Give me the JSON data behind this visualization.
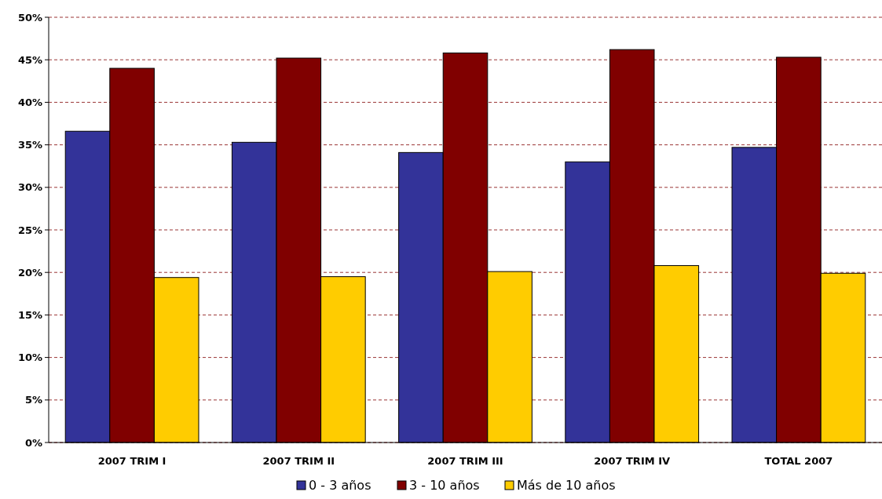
{
  "chart_data": {
    "type": "bar",
    "categories": [
      "2007 TRIM I",
      "2007 TRIM II",
      "2007 TRIM III",
      "2007 TRIM IV",
      "TOTAL 2007"
    ],
    "series": [
      {
        "name": "0 - 3 años",
        "color": "#333399",
        "values": [
          36.6,
          35.3,
          34.1,
          33.0,
          34.7
        ]
      },
      {
        "name": "3 - 10 años",
        "color": "#800000",
        "values": [
          44.0,
          45.2,
          45.8,
          46.2,
          45.3
        ]
      },
      {
        "name": "Más de 10 años",
        "color": "#ffcc00",
        "values": [
          19.4,
          19.5,
          20.1,
          20.8,
          19.9
        ]
      }
    ],
    "ylim": [
      0,
      50
    ],
    "yticks": [
      {
        "value": 0,
        "label": "0%"
      },
      {
        "value": 5,
        "label": "5%"
      },
      {
        "value": 10,
        "label": "10%"
      },
      {
        "value": 15,
        "label": "15%"
      },
      {
        "value": 20,
        "label": "20%"
      },
      {
        "value": 25,
        "label": "25%"
      },
      {
        "value": 30,
        "label": "30%"
      },
      {
        "value": 35,
        "label": "35%"
      },
      {
        "value": 40,
        "label": "40%"
      },
      {
        "value": 45,
        "label": "45%"
      },
      {
        "value": 50,
        "label": "50%"
      }
    ],
    "grid": "y",
    "legend": "bottom"
  }
}
